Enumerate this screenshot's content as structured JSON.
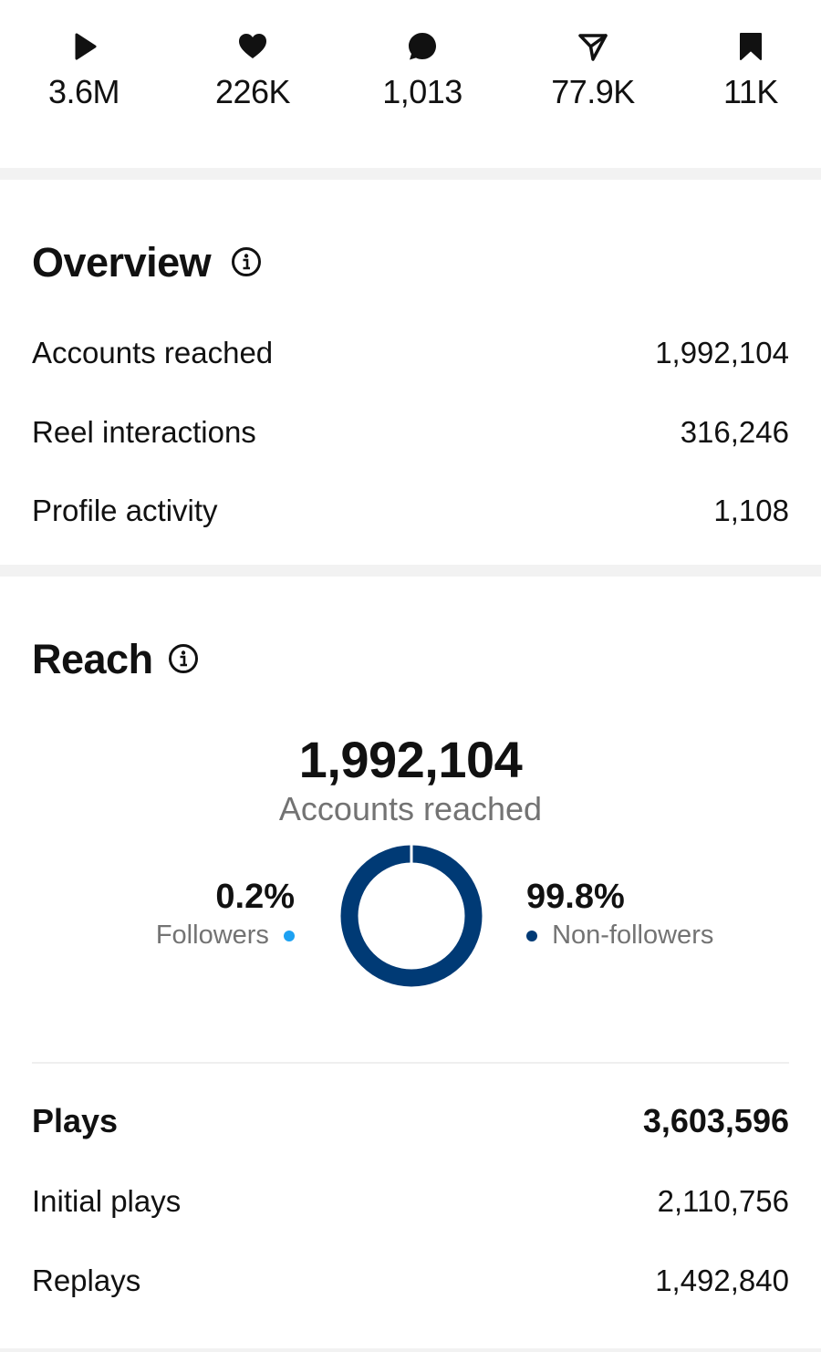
{
  "stats": [
    {
      "icon": "play-icon",
      "value": "3.6M"
    },
    {
      "icon": "heart-icon",
      "value": "226K"
    },
    {
      "icon": "comment-icon",
      "value": "1,013"
    },
    {
      "icon": "share-icon",
      "value": "77.9K"
    },
    {
      "icon": "bookmark-icon",
      "value": "11K"
    }
  ],
  "overview": {
    "title": "Overview",
    "rows": [
      {
        "label": "Accounts reached",
        "value": "1,992,104"
      },
      {
        "label": "Reel interactions",
        "value": "316,246"
      },
      {
        "label": "Profile activity",
        "value": "1,108"
      }
    ]
  },
  "reach": {
    "title": "Reach",
    "total": "1,992,104",
    "total_label": "Accounts reached",
    "followers_pct": "0.2%",
    "followers_label": "Followers",
    "nonfollowers_pct": "99.8%",
    "nonfollowers_label": "Non-followers",
    "followers_fraction": 0.002,
    "nonfollowers_fraction": 0.998,
    "colors": {
      "followers": "#1da1f2",
      "nonfollowers": "#003a75"
    }
  },
  "plays": {
    "label": "Plays",
    "value": "3,603,596",
    "rows": [
      {
        "label": "Initial plays",
        "value": "2,110,756"
      },
      {
        "label": "Replays",
        "value": "1,492,840"
      }
    ]
  }
}
